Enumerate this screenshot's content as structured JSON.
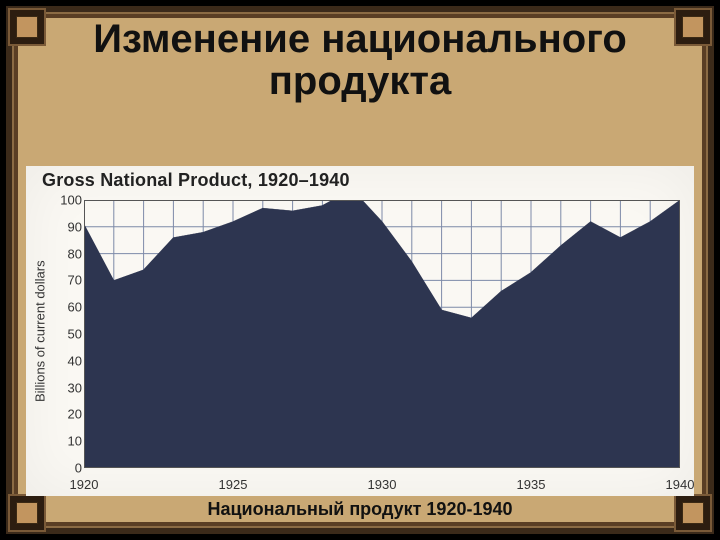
{
  "frame": {
    "background_color": "#c9a874",
    "border_color": "#3b2a1a",
    "corner_color": "#2c1d10"
  },
  "title": {
    "text": "Изменение национального продукта",
    "fontsize": 40,
    "color": "#111111"
  },
  "caption": {
    "text": "Национальный продукт 1920-1940",
    "fontsize": 18,
    "color": "#111111"
  },
  "chart": {
    "type": "area",
    "title": "Gross National Product, 1920–1940",
    "title_fontsize": 18,
    "ylabel": "Billions of current dollars",
    "ylabel_fontsize": 13,
    "background_color": "#faf8f3",
    "area_color": "#2d3550",
    "grid_color": "#7d8aa8",
    "axis_color": "#555555",
    "tick_fontsize": 13,
    "xlim": [
      1920,
      1940
    ],
    "ylim": [
      0,
      100
    ],
    "ytick_step": 10,
    "xticks": [
      1920,
      1925,
      1930,
      1935,
      1940
    ],
    "x_gridline_step": 1,
    "years": [
      1920,
      1921,
      1922,
      1923,
      1924,
      1925,
      1926,
      1927,
      1928,
      1929,
      1930,
      1931,
      1932,
      1933,
      1934,
      1935,
      1936,
      1937,
      1938,
      1939,
      1940
    ],
    "values": [
      91,
      70,
      74,
      86,
      88,
      92,
      97,
      96,
      98,
      104,
      92,
      77,
      59,
      56,
      66,
      73,
      83,
      92,
      86,
      92,
      100
    ]
  }
}
